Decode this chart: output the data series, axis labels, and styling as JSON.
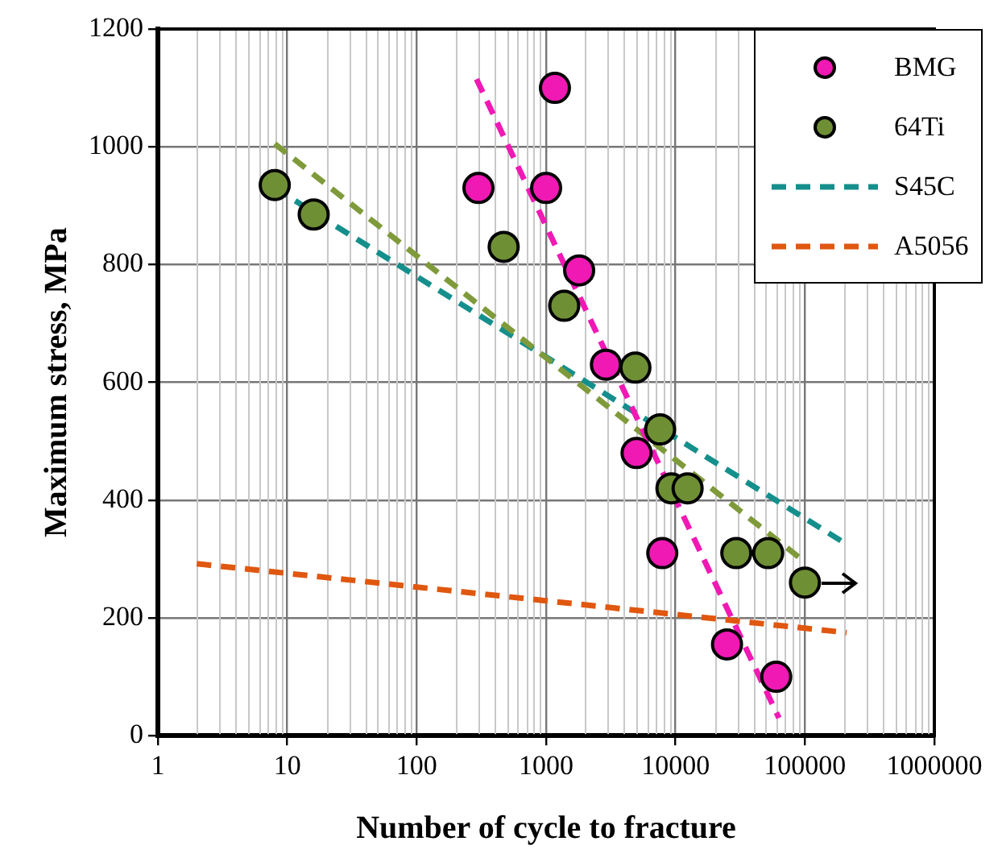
{
  "chart_data": {
    "type": "scatter",
    "xlabel": "Number of cycle to fracture",
    "ylabel": "Maximum stress, MPa",
    "log": "x",
    "xlim": [
      1,
      1000000
    ],
    "xticks": [
      1,
      10,
      100,
      1000,
      10000,
      100000,
      1000000
    ],
    "ylim": [
      0,
      1200
    ],
    "yticks": [
      0,
      200,
      400,
      600,
      800,
      1000,
      1200
    ],
    "grid": true,
    "legend": "top right",
    "series": [
      {
        "name": "BMG",
        "color": "#f019b4",
        "marker": "circle",
        "x": [
          300,
          1170,
          1000,
          1800,
          2900,
          5000,
          7900,
          25000,
          60000
        ],
        "values": [
          930,
          1100,
          930,
          790,
          630,
          480,
          310,
          155,
          100
        ]
      },
      {
        "name": "64Ti",
        "color": "#6f8f35",
        "marker": "circle",
        "x": [
          8,
          16,
          470,
          1380,
          4900,
          7600,
          9300,
          12400,
          29500,
          52000,
          100000
        ],
        "values": [
          935,
          885,
          830,
          730,
          625,
          520,
          420,
          420,
          310,
          310,
          260
        ]
      },
      {
        "type": "line",
        "color": "#f019b4",
        "marker": "none",
        "line_style": "dashed",
        "x": [
          290,
          63000
        ],
        "values": [
          1115,
          30
        ]
      },
      {
        "type": "line",
        "color": "#7f9a3a",
        "marker": "none",
        "line_style": "dashed",
        "x": [
          8,
          100000
        ],
        "values": [
          1005,
          295
        ]
      },
      {
        "name": "S45C",
        "type": "line",
        "color": "#148f8c",
        "marker": "none",
        "line_style": "dashed",
        "x": [
          8,
          210000
        ],
        "values": [
          930,
          325
        ]
      },
      {
        "name": "A5056",
        "type": "line",
        "color": "#e0570f",
        "marker": "none",
        "line_style": "dashed",
        "x": [
          2,
          210000
        ],
        "values": [
          292,
          175
        ]
      }
    ]
  }
}
